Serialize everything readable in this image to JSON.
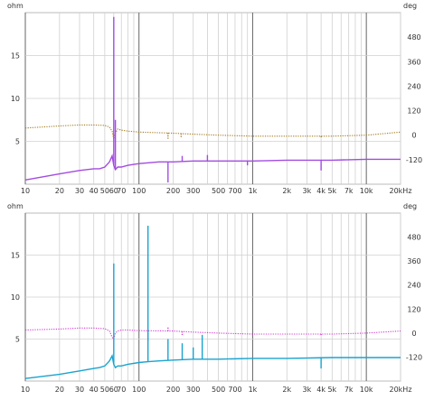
{
  "chart_data": [
    {
      "type": "line",
      "xscale": "log",
      "xlim": [
        10,
        20000
      ],
      "xlabel": "",
      "left_axis": {
        "unit": "ohm",
        "ylim": [
          0,
          20
        ],
        "ticks": [
          5,
          10,
          15
        ]
      },
      "right_axis": {
        "unit": "deg",
        "ylim": [
          -240,
          600
        ],
        "ticks": [
          -120,
          0,
          120,
          240,
          360,
          480
        ]
      },
      "x_ticks": [
        "10",
        "20",
        "30",
        "40",
        "50",
        "60",
        "70",
        "100",
        "200",
        "300",
        "500",
        "700",
        "1k",
        "2k",
        "3k",
        "4k",
        "5k",
        "7k",
        "10k",
        "20kHz"
      ],
      "x_tick_values": [
        10,
        20,
        30,
        40,
        50,
        60,
        70,
        100,
        200,
        300,
        500,
        700,
        1000,
        2000,
        3000,
        4000,
        5000,
        7000,
        10000,
        20000
      ],
      "grid": true,
      "series": [
        {
          "axis": "right",
          "style": "dotted",
          "color": "#a07a1e",
          "x": [
            10,
            20,
            30,
            40,
            50,
            55,
            58,
            60,
            62,
            65,
            70,
            80,
            100,
            200,
            300,
            500,
            1000,
            2000,
            5000,
            10000,
            20000
          ],
          "y": [
            35,
            45,
            50,
            50,
            48,
            40,
            20,
            -20,
            10,
            30,
            25,
            20,
            15,
            10,
            5,
            0,
            -5,
            -5,
            -5,
            0,
            15
          ],
          "spikes": [
            {
              "x": 180,
              "y": -20
            },
            {
              "x": 235,
              "y": -15
            },
            {
              "x": 4000,
              "y": -10
            }
          ]
        },
        {
          "axis": "left",
          "style": "solid",
          "color": "#a24ce0",
          "x": [
            10,
            20,
            30,
            40,
            45,
            50,
            55,
            58,
            60,
            62,
            65,
            70,
            80,
            100,
            150,
            200,
            300,
            500,
            1000,
            2000,
            5000,
            10000,
            20000
          ],
          "y": [
            0.5,
            1.2,
            1.6,
            1.8,
            1.8,
            2.0,
            2.6,
            3.3,
            2.2,
            1.7,
            2.0,
            2.0,
            2.2,
            2.4,
            2.6,
            2.6,
            2.7,
            2.7,
            2.7,
            2.8,
            2.8,
            2.9,
            2.9
          ],
          "spikes": [
            {
              "x": 60,
              "y": 19.5
            },
            {
              "x": 62,
              "y": 7.5
            },
            {
              "x": 180,
              "y": 0.2
            },
            {
              "x": 240,
              "y": 3.3
            },
            {
              "x": 400,
              "y": 3.4
            },
            {
              "x": 900,
              "y": 2.2
            },
            {
              "x": 4000,
              "y": 1.6
            }
          ]
        }
      ]
    },
    {
      "type": "line",
      "xscale": "log",
      "xlim": [
        10,
        20000
      ],
      "xlabel": "",
      "left_axis": {
        "unit": "ohm",
        "ylim": [
          0,
          20
        ],
        "ticks": [
          5,
          10,
          15
        ]
      },
      "right_axis": {
        "unit": "deg",
        "ylim": [
          -240,
          600
        ],
        "ticks": [
          -120,
          0,
          120,
          240,
          360,
          480
        ]
      },
      "x_ticks": [
        "10",
        "20",
        "30",
        "40",
        "50",
        "60",
        "70",
        "100",
        "200",
        "300",
        "500",
        "700",
        "1k",
        "2k",
        "3k",
        "4k",
        "5k",
        "7k",
        "10k",
        "20kHz"
      ],
      "x_tick_values": [
        10,
        20,
        30,
        40,
        50,
        60,
        70,
        100,
        200,
        300,
        500,
        700,
        1000,
        2000,
        3000,
        4000,
        5000,
        7000,
        10000,
        20000
      ],
      "grid": true,
      "series": [
        {
          "axis": "right",
          "style": "dotted",
          "color": "#d23ad2",
          "x": [
            10,
            20,
            30,
            40,
            50,
            55,
            58,
            60,
            62,
            65,
            70,
            80,
            100,
            200,
            300,
            500,
            1000,
            2000,
            5000,
            10000,
            20000
          ],
          "y": [
            15,
            20,
            25,
            25,
            22,
            10,
            -20,
            -30,
            0,
            10,
            15,
            15,
            12,
            10,
            5,
            0,
            -5,
            -5,
            -5,
            0,
            10
          ],
          "spikes": [
            {
              "x": 120,
              "y": -40
            },
            {
              "x": 180,
              "y": 30
            },
            {
              "x": 240,
              "y": -10
            },
            {
              "x": 4000,
              "y": -10
            }
          ]
        },
        {
          "axis": "left",
          "style": "solid",
          "color": "#1aa3cf",
          "x": [
            10,
            20,
            30,
            40,
            45,
            50,
            55,
            58,
            60,
            62,
            65,
            70,
            80,
            100,
            120,
            150,
            200,
            300,
            500,
            1000,
            2000,
            5000,
            10000,
            20000
          ],
          "y": [
            0.3,
            0.8,
            1.2,
            1.5,
            1.6,
            1.8,
            2.4,
            3.0,
            2.0,
            1.6,
            1.8,
            1.8,
            2.0,
            2.2,
            2.3,
            2.4,
            2.5,
            2.6,
            2.6,
            2.7,
            2.7,
            2.8,
            2.8,
            2.8
          ],
          "spikes": [
            {
              "x": 60,
              "y": 14.0
            },
            {
              "x": 120,
              "y": 18.5
            },
            {
              "x": 180,
              "y": 5.0
            },
            {
              "x": 240,
              "y": 4.5
            },
            {
              "x": 300,
              "y": 4.0
            },
            {
              "x": 360,
              "y": 5.5
            },
            {
              "x": 4000,
              "y": 1.5
            }
          ]
        }
      ]
    }
  ]
}
